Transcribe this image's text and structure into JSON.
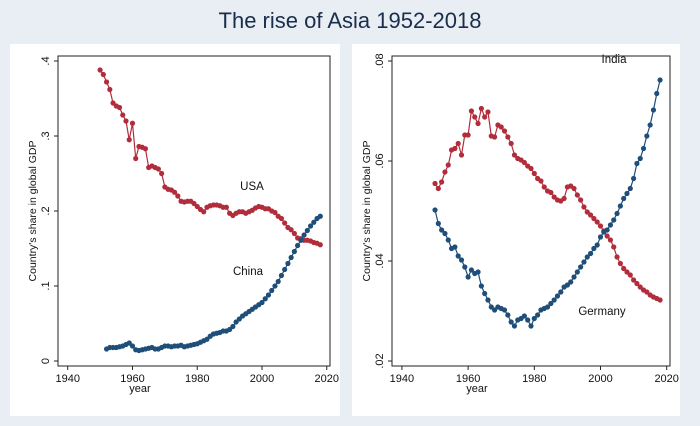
{
  "title": "The rise of Asia 1952-2018",
  "colors": {
    "red": "#b22d3c",
    "blue": "#1f4e79",
    "background": "#e8eef3"
  },
  "chart_data": [
    {
      "type": "line",
      "xlabel": "year",
      "ylabel": "Country's share in global GDP",
      "xlim": [
        1937,
        2021
      ],
      "ylim": [
        0,
        0.4
      ],
      "xticks": [
        "1940",
        "1960",
        "1980",
        "2000",
        "2020"
      ],
      "yticks": [
        "0",
        ".1",
        ".2",
        ".3",
        ".4"
      ],
      "series": [
        {
          "name": "USA",
          "label": "USA",
          "color": "#b22d3c",
          "x": [
            1950,
            1951,
            1952,
            1953,
            1954,
            1955,
            1956,
            1957,
            1958,
            1959,
            1960,
            1961,
            1962,
            1963,
            1964,
            1965,
            1966,
            1967,
            1968,
            1969,
            1970,
            1971,
            1972,
            1973,
            1974,
            1975,
            1976,
            1977,
            1978,
            1979,
            1980,
            1981,
            1982,
            1983,
            1984,
            1985,
            1986,
            1987,
            1988,
            1989,
            1990,
            1991,
            1992,
            1993,
            1994,
            1995,
            1996,
            1997,
            1998,
            1999,
            2000,
            2001,
            2002,
            2003,
            2004,
            2005,
            2006,
            2007,
            2008,
            2009,
            2010,
            2011,
            2012,
            2013,
            2014,
            2015,
            2016,
            2017,
            2018
          ],
          "y": [
            0.388,
            0.382,
            0.372,
            0.362,
            0.344,
            0.34,
            0.338,
            0.328,
            0.32,
            0.295,
            0.317,
            0.27,
            0.286,
            0.285,
            0.283,
            0.258,
            0.26,
            0.258,
            0.256,
            0.25,
            0.232,
            0.229,
            0.228,
            0.225,
            0.22,
            0.213,
            0.212,
            0.213,
            0.213,
            0.21,
            0.206,
            0.202,
            0.199,
            0.205,
            0.207,
            0.208,
            0.208,
            0.207,
            0.205,
            0.205,
            0.197,
            0.194,
            0.197,
            0.199,
            0.199,
            0.197,
            0.199,
            0.201,
            0.204,
            0.206,
            0.205,
            0.203,
            0.203,
            0.2,
            0.198,
            0.193,
            0.19,
            0.184,
            0.178,
            0.175,
            0.17,
            0.164,
            0.163,
            0.161,
            0.161,
            0.16,
            0.158,
            0.157,
            0.155
          ]
        },
        {
          "name": "China",
          "label": "China",
          "color": "#1f4e79",
          "x": [
            1952,
            1953,
            1954,
            1955,
            1956,
            1957,
            1958,
            1959,
            1960,
            1961,
            1962,
            1963,
            1964,
            1965,
            1966,
            1967,
            1968,
            1969,
            1970,
            1971,
            1972,
            1973,
            1974,
            1975,
            1976,
            1977,
            1978,
            1979,
            1980,
            1981,
            1982,
            1983,
            1984,
            1985,
            1986,
            1987,
            1988,
            1989,
            1990,
            1991,
            1992,
            1993,
            1994,
            1995,
            1996,
            1997,
            1998,
            1999,
            2000,
            2001,
            2002,
            2003,
            2004,
            2005,
            2006,
            2007,
            2008,
            2009,
            2010,
            2011,
            2012,
            2013,
            2014,
            2015,
            2016,
            2017,
            2018
          ],
          "y": [
            0.016,
            0.018,
            0.018,
            0.018,
            0.019,
            0.02,
            0.022,
            0.024,
            0.02,
            0.015,
            0.014,
            0.015,
            0.016,
            0.017,
            0.018,
            0.016,
            0.016,
            0.018,
            0.02,
            0.02,
            0.019,
            0.02,
            0.02,
            0.021,
            0.019,
            0.02,
            0.021,
            0.022,
            0.023,
            0.025,
            0.027,
            0.029,
            0.033,
            0.036,
            0.037,
            0.038,
            0.04,
            0.04,
            0.042,
            0.046,
            0.052,
            0.056,
            0.06,
            0.063,
            0.066,
            0.069,
            0.072,
            0.075,
            0.078,
            0.083,
            0.088,
            0.094,
            0.1,
            0.106,
            0.114,
            0.122,
            0.13,
            0.138,
            0.146,
            0.154,
            0.161,
            0.168,
            0.174,
            0.18,
            0.185,
            0.19,
            0.193
          ]
        }
      ]
    },
    {
      "type": "line",
      "xlabel": "year",
      "ylabel": "Country's share in global GDP",
      "xlim": [
        1937,
        2021
      ],
      "ylim": [
        0.02,
        0.08
      ],
      "xticks": [
        "1940",
        "1960",
        "1980",
        "2000",
        "2020"
      ],
      "yticks": [
        ".02",
        ".04",
        ".06",
        ".08"
      ],
      "series": [
        {
          "name": "Germany",
          "label": "Germany",
          "color": "#b22d3c",
          "x": [
            1950,
            1951,
            1952,
            1953,
            1954,
            1955,
            1956,
            1957,
            1958,
            1959,
            1960,
            1961,
            1962,
            1963,
            1964,
            1965,
            1966,
            1967,
            1968,
            1969,
            1970,
            1971,
            1972,
            1973,
            1974,
            1975,
            1976,
            1977,
            1978,
            1979,
            1980,
            1981,
            1982,
            1983,
            1984,
            1985,
            1986,
            1987,
            1988,
            1989,
            1990,
            1991,
            1992,
            1993,
            1994,
            1995,
            1996,
            1997,
            1998,
            1999,
            2000,
            2001,
            2002,
            2003,
            2004,
            2005,
            2006,
            2007,
            2008,
            2009,
            2010,
            2011,
            2012,
            2013,
            2014,
            2015,
            2016,
            2017,
            2018
          ],
          "y": [
            0.0555,
            0.0545,
            0.0558,
            0.0578,
            0.0592,
            0.0622,
            0.0625,
            0.0635,
            0.0612,
            0.0652,
            0.0652,
            0.07,
            0.0688,
            0.0675,
            0.0705,
            0.0688,
            0.0698,
            0.065,
            0.0648,
            0.0672,
            0.0668,
            0.066,
            0.0648,
            0.0635,
            0.0612,
            0.0605,
            0.0602,
            0.0597,
            0.059,
            0.0585,
            0.0575,
            0.0565,
            0.056,
            0.0548,
            0.054,
            0.0537,
            0.0528,
            0.0522,
            0.052,
            0.0525,
            0.0548,
            0.055,
            0.0545,
            0.0532,
            0.0522,
            0.0508,
            0.0498,
            0.0492,
            0.0485,
            0.0478,
            0.047,
            0.046,
            0.045,
            0.0442,
            0.0428,
            0.0408,
            0.0395,
            0.0385,
            0.0378,
            0.0372,
            0.0362,
            0.0355,
            0.0348,
            0.0342,
            0.0338,
            0.0332,
            0.0328,
            0.0325,
            0.0322
          ]
        },
        {
          "name": "India",
          "label": "India",
          "color": "#1f4e79",
          "x": [
            1950,
            1951,
            1952,
            1953,
            1954,
            1955,
            1956,
            1957,
            1958,
            1959,
            1960,
            1961,
            1962,
            1963,
            1964,
            1965,
            1966,
            1967,
            1968,
            1969,
            1970,
            1971,
            1972,
            1973,
            1974,
            1975,
            1976,
            1977,
            1978,
            1979,
            1980,
            1981,
            1982,
            1983,
            1984,
            1985,
            1986,
            1987,
            1988,
            1989,
            1990,
            1991,
            1992,
            1993,
            1994,
            1995,
            1996,
            1997,
            1998,
            1999,
            2000,
            2001,
            2002,
            2003,
            2004,
            2005,
            2006,
            2007,
            2008,
            2009,
            2010,
            2011,
            2012,
            2013,
            2014,
            2015,
            2016,
            2017,
            2018
          ],
          "y": [
            0.0502,
            0.0475,
            0.0462,
            0.0455,
            0.0442,
            0.0425,
            0.0428,
            0.041,
            0.0402,
            0.0388,
            0.0368,
            0.0382,
            0.0375,
            0.0378,
            0.035,
            0.0335,
            0.0322,
            0.0308,
            0.0302,
            0.0308,
            0.0305,
            0.0302,
            0.0292,
            0.0278,
            0.027,
            0.0282,
            0.0285,
            0.029,
            0.0282,
            0.027,
            0.0285,
            0.0292,
            0.0302,
            0.0305,
            0.0308,
            0.0315,
            0.0322,
            0.033,
            0.0338,
            0.0348,
            0.0352,
            0.0358,
            0.0368,
            0.0378,
            0.0388,
            0.0398,
            0.0408,
            0.0415,
            0.0425,
            0.0432,
            0.0448,
            0.0458,
            0.0462,
            0.0472,
            0.0482,
            0.0495,
            0.051,
            0.0525,
            0.0535,
            0.0545,
            0.0565,
            0.0595,
            0.0605,
            0.0625,
            0.065,
            0.0672,
            0.0702,
            0.0735,
            0.0762
          ]
        }
      ]
    }
  ]
}
